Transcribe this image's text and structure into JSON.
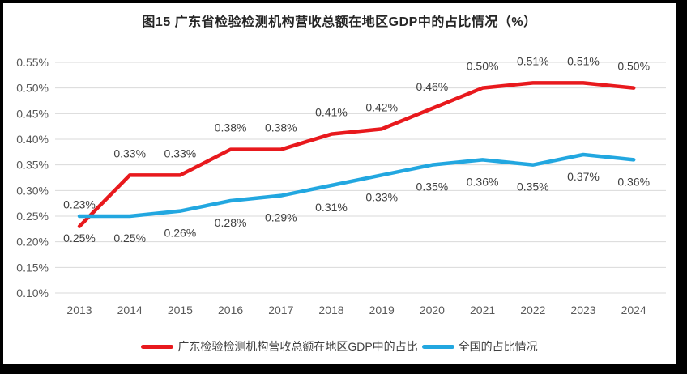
{
  "title": "图15  广东省检验检测机构营收总额在地区GDP中的占比情况（%）",
  "colors": {
    "grid": "#d9d9d9",
    "axis_text": "#595959",
    "label_text": "#404040",
    "title_text": "#262626",
    "background": "#ffffff",
    "frame": "#000000"
  },
  "chart_data": {
    "type": "line",
    "title": "图15  广东省检验检测机构营收总额在地区GDP中的占比情况（%）",
    "categories": [
      "2013",
      "2014",
      "2015",
      "2016",
      "2017",
      "2018",
      "2019",
      "2020",
      "2021",
      "2022",
      "2023",
      "2024"
    ],
    "series": [
      {
        "name": "广东检验检测机构营收总额在地区GDP中的占比",
        "color": "#e8191d",
        "values": [
          0.23,
          0.33,
          0.33,
          0.38,
          0.38,
          0.41,
          0.42,
          0.46,
          0.5,
          0.51,
          0.51,
          0.5
        ],
        "labels": [
          "0.23%",
          "0.33%",
          "0.33%",
          "0.38%",
          "0.38%",
          "0.41%",
          "0.42%",
          "0.46%",
          "0.50%",
          "0.51%",
          "0.51%",
          "0.50%"
        ],
        "label_position": "above"
      },
      {
        "name": "全国的占比情况",
        "color": "#22a7e0",
        "values": [
          0.25,
          0.25,
          0.26,
          0.28,
          0.29,
          0.31,
          0.33,
          0.35,
          0.36,
          0.35,
          0.37,
          0.36
        ],
        "labels": [
          "0.25%",
          "0.25%",
          "0.26%",
          "0.28%",
          "0.29%",
          "0.31%",
          "0.33%",
          "0.35%",
          "0.36%",
          "0.35%",
          "0.37%",
          "0.36%"
        ],
        "label_position": "below"
      }
    ],
    "xlabel": "",
    "ylabel": "",
    "ylim": [
      0.1,
      0.55
    ],
    "ytick_step": 0.05,
    "ytick_labels": [
      "0.55%",
      "0.50%",
      "0.45%",
      "0.40%",
      "0.35%",
      "0.30%",
      "0.25%",
      "0.20%",
      "0.15%",
      "0.10%"
    ],
    "grid": true,
    "legend_position": "bottom"
  }
}
